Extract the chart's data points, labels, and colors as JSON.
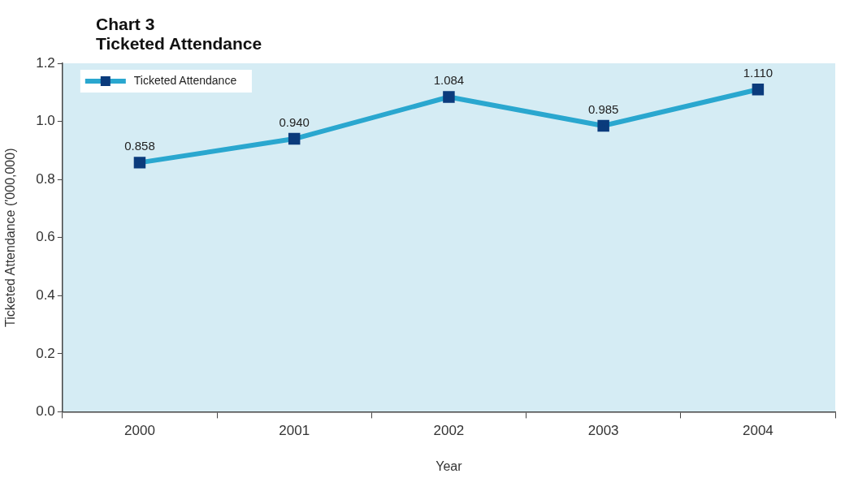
{
  "chart_data": {
    "type": "line",
    "title": "Chart 3",
    "subtitle": "Ticketed Attendance",
    "xlabel": "Year",
    "ylabel": "Ticketed Attendance ('000,000)",
    "categories": [
      "2000",
      "2001",
      "2002",
      "2003",
      "2004"
    ],
    "series": [
      {
        "name": "Ticketed Attendance",
        "color": "#2aa7cf",
        "colors": [
          "#0b3b7c",
          "#0b3b7c",
          "#0b3b7c",
          "#0b3b7c",
          "#0b3b7c"
        ],
        "values": [
          0.858,
          0.94,
          1.084,
          0.985,
          1.11
        ],
        "value_labels": [
          "0.858",
          "0.940",
          "1.084",
          "0.985",
          "1.110"
        ]
      }
    ],
    "ylim": [
      0,
      1.2
    ],
    "yticks": [
      {
        "value": 0,
        "label": "0.0"
      },
      {
        "value": 0.2,
        "label": "0.2"
      },
      {
        "value": 0.4,
        "label": "0.4"
      },
      {
        "value": 0.6,
        "label": "0.6"
      },
      {
        "value": 0.8,
        "label": "0.8"
      },
      {
        "value": 1,
        "label": "1.0"
      },
      {
        "value": 1.2,
        "label": "1.2"
      }
    ],
    "legend": "top left",
    "marker": "square",
    "line_style": "solid"
  }
}
